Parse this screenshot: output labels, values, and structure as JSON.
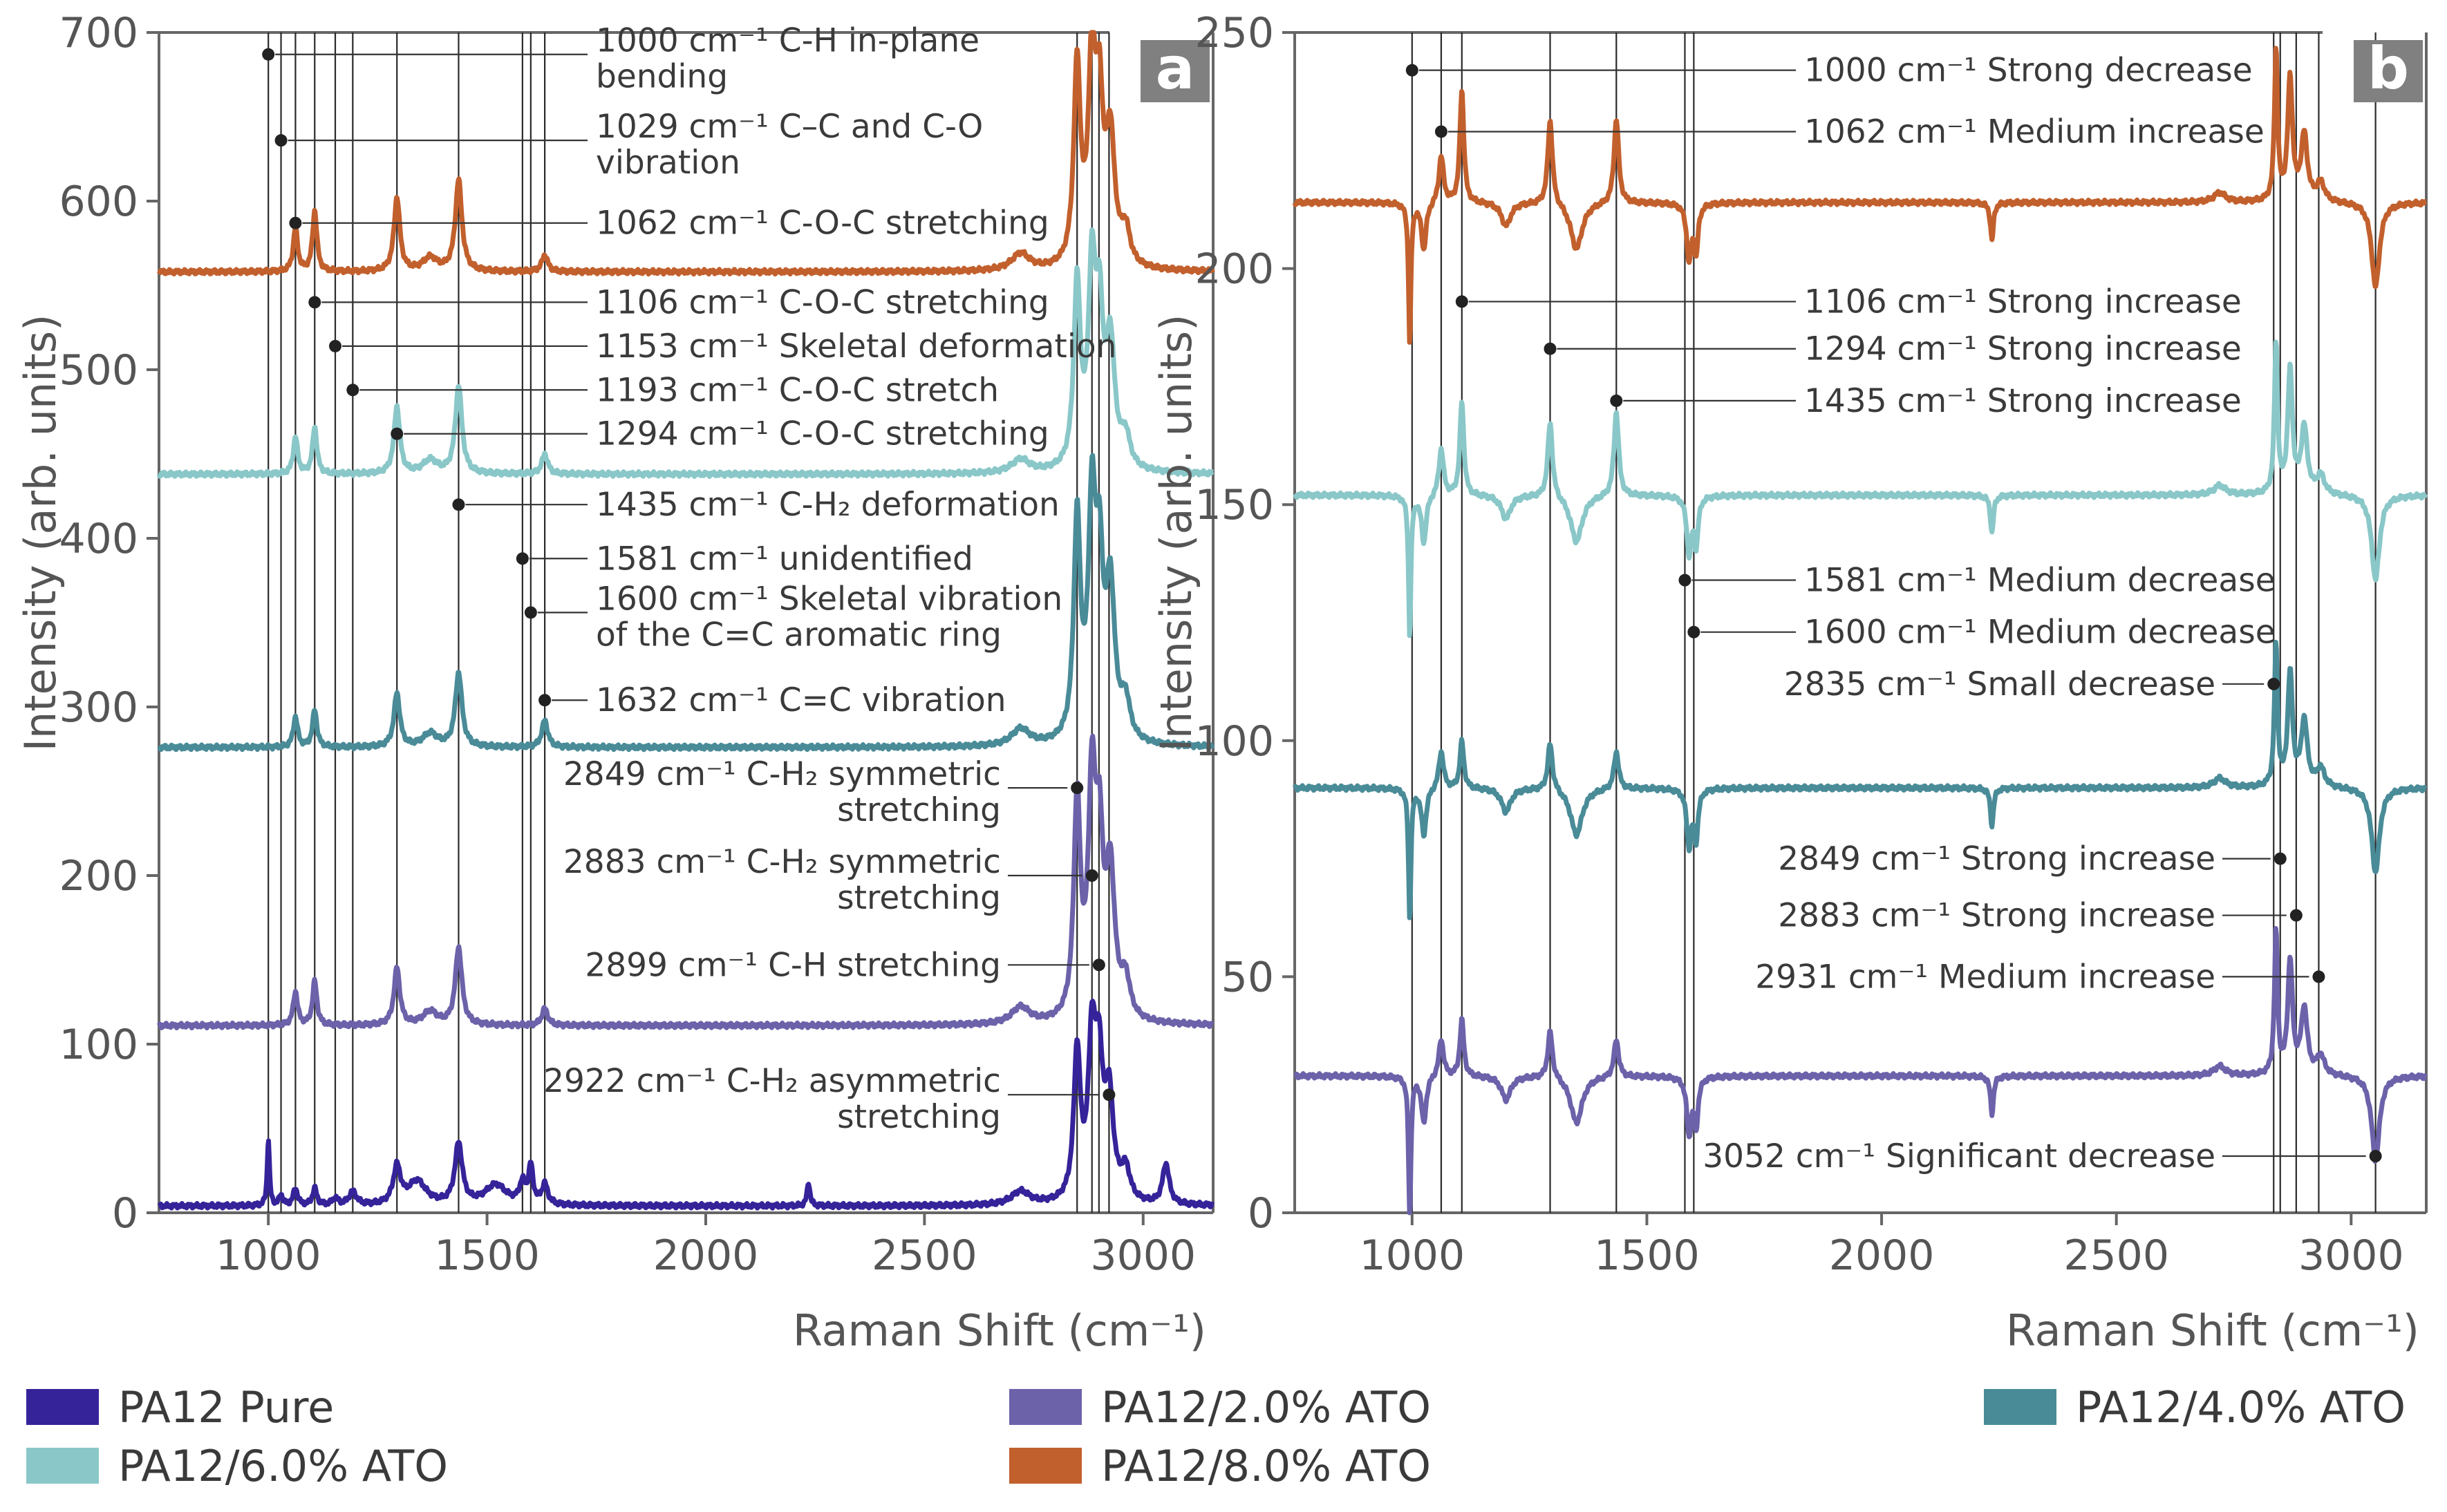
{
  "chart_data": [
    {
      "type": "line",
      "panel": "a",
      "xlabel": "Raman Shift (cm⁻¹)",
      "ylabel": "Intensity (arb. units)",
      "xlim": [
        750,
        3160
      ],
      "ylim": [
        0,
        700
      ],
      "xticks": [
        1000,
        1500,
        2000,
        2500,
        3000
      ],
      "yticks": [
        0,
        100,
        200,
        300,
        400,
        500,
        600,
        700
      ],
      "xtick_labels": [
        "1000",
        "1500",
        "2000",
        "2500",
        "3000"
      ],
      "ytick_labels": [
        "0",
        "100",
        "200",
        "300",
        "400",
        "500",
        "600",
        "700"
      ],
      "series": [
        {
          "name": "PA12 Pure",
          "key": "pure",
          "color": "#35239a",
          "baseline": 4,
          "peaks": [
            [
              1000,
              40,
              3
            ],
            [
              1029,
              6,
              5
            ],
            [
              1062,
              10,
              6
            ],
            [
              1106,
              10,
              6
            ],
            [
              1153,
              4,
              8
            ],
            [
              1193,
              8,
              10
            ],
            [
              1294,
              22,
              10
            ],
            [
              1340,
              14,
              25
            ],
            [
              1435,
              36,
              10
            ],
            [
              1520,
              12,
              30
            ],
            [
              1581,
              12,
              8
            ],
            [
              1600,
              22,
              6
            ],
            [
              1632,
              12,
              8
            ],
            [
              2235,
              14,
              4
            ],
            [
              2720,
              8,
              25
            ],
            [
              2849,
              88,
              9
            ],
            [
              2883,
              90,
              10
            ],
            [
              2899,
              72,
              10
            ],
            [
              2922,
              60,
              12
            ],
            [
              2960,
              18,
              12
            ],
            [
              3052,
              24,
              9
            ]
          ]
        },
        {
          "name": "PA12/2.0% ATO",
          "key": "ato2",
          "color": "#6b62aa",
          "baseline": 111,
          "peaks": [
            [
              1062,
              20,
              6
            ],
            [
              1106,
              26,
              6
            ],
            [
              1294,
              34,
              8
            ],
            [
              1370,
              8,
              20
            ],
            [
              1435,
              46,
              9
            ],
            [
              1632,
              10,
              8
            ],
            [
              2720,
              10,
              25
            ],
            [
              2849,
              128,
              9
            ],
            [
              2883,
              132,
              10
            ],
            [
              2900,
              92,
              10
            ],
            [
              2925,
              84,
              12
            ],
            [
              2960,
              22,
              12
            ]
          ]
        },
        {
          "name": "PA12/4.0% ATO",
          "key": "ato4",
          "color": "#4a8b98",
          "baseline": 276,
          "peaks": [
            [
              1062,
              18,
              6
            ],
            [
              1106,
              22,
              6
            ],
            [
              1294,
              32,
              8
            ],
            [
              1370,
              8,
              20
            ],
            [
              1435,
              44,
              9
            ],
            [
              1632,
              16,
              8
            ],
            [
              2720,
              10,
              25
            ],
            [
              2849,
              130,
              9
            ],
            [
              2883,
              132,
              10
            ],
            [
              2900,
              92,
              10
            ],
            [
              2925,
              88,
              12
            ],
            [
              2960,
              22,
              12
            ]
          ]
        },
        {
          "name": "PA12/6.0% ATO",
          "key": "ato6",
          "color": "#8ac7c8",
          "baseline": 438,
          "peaks": [
            [
              1062,
              22,
              6
            ],
            [
              1106,
              28,
              6
            ],
            [
              1294,
              40,
              8
            ],
            [
              1370,
              8,
              20
            ],
            [
              1435,
              52,
              9
            ],
            [
              1632,
              12,
              8
            ],
            [
              2720,
              8,
              25
            ],
            [
              2849,
              108,
              9
            ],
            [
              2883,
              110,
              10
            ],
            [
              2900,
              80,
              10
            ],
            [
              2925,
              72,
              12
            ],
            [
              2960,
              18,
              12
            ]
          ]
        },
        {
          "name": "PA12/8.0% ATO",
          "key": "ato8",
          "color": "#c2602d",
          "baseline": 558,
          "peaks": [
            [
              1062,
              26,
              6
            ],
            [
              1106,
              36,
              6
            ],
            [
              1294,
              44,
              8
            ],
            [
              1370,
              8,
              20
            ],
            [
              1435,
              54,
              9
            ],
            [
              1632,
              10,
              8
            ],
            [
              2720,
              10,
              25
            ],
            [
              2849,
              118,
              9
            ],
            [
              2883,
              116,
              10
            ],
            [
              2900,
              86,
              10
            ],
            [
              2925,
              74,
              12
            ],
            [
              2960,
              20,
              12
            ]
          ]
        }
      ],
      "annotations": [
        {
          "label": "1000 cm⁻¹ C-H in-plane",
          "label2": "bending",
          "x": 1000,
          "y": 687
        },
        {
          "label": "1029 cm⁻¹ C–C and C-O",
          "label2": "vibration",
          "x": 1029,
          "y": 636
        },
        {
          "label": "1062 cm⁻¹ C-O-C stretching",
          "x": 1062,
          "y": 587
        },
        {
          "label": "1106 cm⁻¹ C-O-C stretching",
          "x": 1106,
          "y": 540
        },
        {
          "label": "1153 cm⁻¹ Skeletal deformation",
          "x": 1153,
          "y": 514
        },
        {
          "label": "1193 cm⁻¹ C-O-C stretch",
          "x": 1193,
          "y": 488
        },
        {
          "label": "1294 cm⁻¹ C-O-C stretching",
          "x": 1294,
          "y": 462
        },
        {
          "label": "1435 cm⁻¹ C-H₂ deformation",
          "x": 1435,
          "y": 420
        },
        {
          "label": "1581 cm⁻¹ unidentified",
          "x": 1581,
          "y": 388
        },
        {
          "label": "1600 cm⁻¹ Skeletal vibration",
          "label2": "of the C=C aromatic ring",
          "x": 1600,
          "y": 356
        },
        {
          "label": "1632 cm⁻¹ C=C vibration",
          "x": 1632,
          "y": 304
        },
        {
          "label": "2849 cm⁻¹ C-H₂ symmetric",
          "label2": "stretching",
          "x": 2849,
          "y": 252
        },
        {
          "label": "2883 cm⁻¹ C-H₂ symmetric",
          "label2": "stretching",
          "x": 2883,
          "y": 200
        },
        {
          "label": "2899 cm⁻¹ C-H stretching",
          "x": 2899,
          "y": 147
        },
        {
          "label": "2922 cm⁻¹ C-H₂ asymmetric",
          "label2": "stretching",
          "x": 2922,
          "y": 70
        }
      ]
    },
    {
      "type": "line",
      "panel": "b",
      "xlabel": "Raman Shift (cm⁻¹)",
      "ylabel": "Intensity (arb. units)",
      "xlim": [
        750,
        3160
      ],
      "ylim": [
        0,
        250
      ],
      "xticks": [
        1000,
        1500,
        2000,
        2500,
        3000
      ],
      "yticks": [
        0,
        50,
        100,
        150,
        200,
        250
      ],
      "xtick_labels": [
        "1000",
        "1500",
        "2000",
        "2500",
        "3000"
      ],
      "ytick_labels": [
        "0",
        "50",
        "100",
        "150",
        "200",
        "250"
      ],
      "series": [
        {
          "name": "PA12/2.0% ATO",
          "key": "ato2",
          "color": "#6b62aa",
          "baseline": 29,
          "peaks": [
            [
              995,
              -30,
              3
            ],
            [
              1025,
              -10,
              6
            ],
            [
              1062,
              8,
              6
            ],
            [
              1106,
              12,
              5
            ],
            [
              1200,
              -5,
              12
            ],
            [
              1294,
              10,
              6
            ],
            [
              1350,
              -10,
              15
            ],
            [
              1435,
              8,
              6
            ],
            [
              1590,
              -12,
              6
            ],
            [
              1605,
              -10,
              5
            ],
            [
              2235,
              -8,
              4
            ],
            [
              2720,
              2,
              15
            ],
            [
              2840,
              30,
              4
            ],
            [
              2870,
              24,
              6
            ],
            [
              2900,
              14,
              8
            ],
            [
              2935,
              4,
              10
            ],
            [
              3052,
              -18,
              10
            ]
          ]
        },
        {
          "name": "PA12/4.0% ATO",
          "key": "ato4",
          "color": "#4a8b98",
          "baseline": 90,
          "peaks": [
            [
              995,
              -28,
              3
            ],
            [
              1025,
              -10,
              6
            ],
            [
              1062,
              8,
              6
            ],
            [
              1106,
              10,
              5
            ],
            [
              1200,
              -5,
              12
            ],
            [
              1294,
              10,
              6
            ],
            [
              1350,
              -10,
              15
            ],
            [
              1435,
              8,
              6
            ],
            [
              1590,
              -12,
              6
            ],
            [
              1605,
              -10,
              5
            ],
            [
              2235,
              -8,
              4
            ],
            [
              2720,
              2,
              15
            ],
            [
              2840,
              30,
              4
            ],
            [
              2870,
              24,
              6
            ],
            [
              2900,
              14,
              8
            ],
            [
              2935,
              4,
              10
            ],
            [
              3052,
              -18,
              10
            ]
          ]
        },
        {
          "name": "PA12/6.0% ATO",
          "key": "ato6",
          "color": "#8ac7c8",
          "baseline": 152,
          "peaks": [
            [
              995,
              -30,
              3
            ],
            [
              1025,
              -10,
              6
            ],
            [
              1062,
              10,
              6
            ],
            [
              1106,
              20,
              5
            ],
            [
              1200,
              -5,
              12
            ],
            [
              1294,
              16,
              6
            ],
            [
              1350,
              -10,
              15
            ],
            [
              1435,
              18,
              6
            ],
            [
              1590,
              -12,
              6
            ],
            [
              1605,
              -10,
              5
            ],
            [
              2235,
              -8,
              4
            ],
            [
              2720,
              2,
              15
            ],
            [
              2840,
              32,
              4
            ],
            [
              2870,
              26,
              6
            ],
            [
              2900,
              14,
              8
            ],
            [
              2935,
              4,
              10
            ],
            [
              3052,
              -18,
              10
            ]
          ]
        },
        {
          "name": "PA12/8.0% ATO",
          "key": "ato8",
          "color": "#c2602d",
          "baseline": 214,
          "peaks": [
            [
              995,
              -30,
              3
            ],
            [
              1025,
              -10,
              6
            ],
            [
              1062,
              10,
              6
            ],
            [
              1106,
              24,
              5
            ],
            [
              1200,
              -5,
              12
            ],
            [
              1294,
              18,
              6
            ],
            [
              1350,
              -10,
              15
            ],
            [
              1435,
              18,
              6
            ],
            [
              1590,
              -12,
              6
            ],
            [
              1605,
              -10,
              5
            ],
            [
              2235,
              -8,
              4
            ],
            [
              2720,
              2,
              15
            ],
            [
              2840,
              32,
              4
            ],
            [
              2870,
              26,
              6
            ],
            [
              2900,
              14,
              8
            ],
            [
              2935,
              4,
              10
            ],
            [
              3052,
              -18,
              10
            ]
          ]
        }
      ],
      "annotations": [
        {
          "label": "1000 cm⁻¹ Strong decrease",
          "x": 1000,
          "y": 242,
          "side": "right"
        },
        {
          "label": "1062 cm⁻¹ Medium increase",
          "x": 1062,
          "y": 229,
          "side": "right"
        },
        {
          "label": "1106 cm⁻¹ Strong increase",
          "x": 1106,
          "y": 193,
          "side": "right"
        },
        {
          "label": "1294 cm⁻¹ Strong increase",
          "x": 1294,
          "y": 183,
          "side": "right"
        },
        {
          "label": "1435 cm⁻¹ Strong increase",
          "x": 1435,
          "y": 172,
          "side": "right"
        },
        {
          "label": "1581 cm⁻¹ Medium decrease",
          "x": 1581,
          "y": 134,
          "side": "right"
        },
        {
          "label": "1600 cm⁻¹ Medium decrease",
          "x": 1600,
          "y": 123,
          "side": "right"
        },
        {
          "label": "2835 cm⁻¹ Small decrease",
          "x": 2835,
          "y": 112,
          "side": "left"
        },
        {
          "label": "2849 cm⁻¹ Strong increase",
          "x": 2849,
          "y": 75,
          "side": "left"
        },
        {
          "label": "2883 cm⁻¹ Strong increase",
          "x": 2883,
          "y": 63,
          "side": "left"
        },
        {
          "label": "2931 cm⁻¹ Medium increase",
          "x": 2931,
          "y": 50,
          "side": "left"
        },
        {
          "label": "3052 cm⁻¹ Significant decrease",
          "x": 3052,
          "y": 12,
          "side": "left"
        }
      ]
    }
  ],
  "legend": [
    {
      "label": "PA12 Pure",
      "color": "#35239a"
    },
    {
      "label": "PA12/6.0% ATO",
      "color": "#8ac7c8"
    },
    {
      "label": "PA12/2.0% ATO",
      "color": "#6b62aa"
    },
    {
      "label": "PA12/8.0% ATO",
      "color": "#c2602d"
    },
    {
      "label": "PA12/4.0% ATO",
      "color": "#4a8b98"
    }
  ],
  "colors": {
    "axis": "#666666",
    "guide": "#2a2a2a",
    "badge": "#808080"
  }
}
